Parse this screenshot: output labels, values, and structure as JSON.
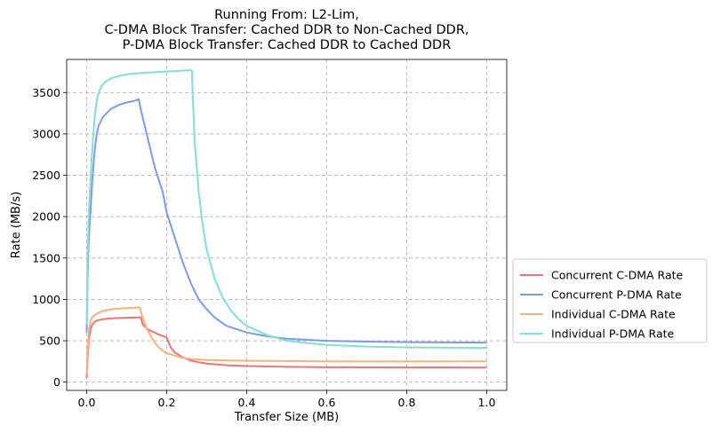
{
  "chart_data": {
    "type": "line",
    "title": "Running From: L2-Lim,\nC-DMA Block Transfer: Cached DDR to Non-Cached DDR,\nP-DMA Block Transfer: Cached DDR to Cached DDR",
    "xlabel": "Transfer Size (MB)",
    "ylabel": "Rate (MB/s)",
    "xlim": [
      -0.05,
      1.05
    ],
    "ylim": [
      -100,
      3900
    ],
    "xticks": [
      0.0,
      0.2,
      0.4,
      0.6,
      0.8,
      1.0
    ],
    "xtick_labels": [
      "0.0",
      "0.2",
      "0.4",
      "0.6",
      "0.8",
      "1.0"
    ],
    "yticks": [
      0,
      500,
      1000,
      1500,
      2000,
      2500,
      3000,
      3500
    ],
    "ytick_labels": [
      "0",
      "500",
      "1000",
      "1500",
      "2000",
      "2500",
      "3000",
      "3500"
    ],
    "grid": true,
    "legend_position": "outside-right-bottom",
    "series": [
      {
        "name": "Concurrent C-DMA Rate",
        "color": "#ea7677",
        "x": [
          0.0,
          0.002,
          0.005,
          0.01,
          0.015,
          0.02,
          0.03,
          0.04,
          0.06,
          0.08,
          0.1,
          0.12,
          0.13,
          0.135,
          0.14,
          0.15,
          0.16,
          0.17,
          0.18,
          0.19,
          0.2,
          0.21,
          0.22,
          0.24,
          0.26,
          0.28,
          0.3,
          0.35,
          0.4,
          0.5,
          0.6,
          0.8,
          1.0
        ],
        "y": [
          50,
          250,
          500,
          650,
          700,
          730,
          750,
          760,
          770,
          775,
          778,
          780,
          782,
          785,
          700,
          650,
          620,
          600,
          575,
          560,
          540,
          420,
          360,
          300,
          260,
          240,
          225,
          205,
          195,
          185,
          180,
          178,
          177
        ]
      },
      {
        "name": "Concurrent P-DMA Rate",
        "color": "#7b9ce9",
        "x": [
          0.0,
          0.002,
          0.005,
          0.01,
          0.015,
          0.02,
          0.025,
          0.03,
          0.035,
          0.04,
          0.05,
          0.06,
          0.08,
          0.1,
          0.12,
          0.13,
          0.135,
          0.14,
          0.15,
          0.16,
          0.17,
          0.18,
          0.19,
          0.2,
          0.22,
          0.24,
          0.26,
          0.28,
          0.3,
          0.32,
          0.35,
          0.4,
          0.45,
          0.5,
          0.6,
          0.7,
          0.8,
          0.9,
          1.0
        ],
        "y": [
          600,
          1200,
          1700,
          2100,
          2500,
          2800,
          3000,
          3100,
          3150,
          3200,
          3250,
          3300,
          3350,
          3380,
          3400,
          3420,
          3300,
          3200,
          3000,
          2800,
          2600,
          2450,
          2300,
          2050,
          1750,
          1450,
          1200,
          1000,
          880,
          780,
          680,
          600,
          555,
          525,
          500,
          490,
          483,
          480,
          478
        ]
      },
      {
        "name": "Individual C-DMA Rate",
        "color": "#f5b27d",
        "x": [
          0.0,
          0.002,
          0.005,
          0.01,
          0.015,
          0.02,
          0.03,
          0.04,
          0.06,
          0.08,
          0.1,
          0.12,
          0.13,
          0.133,
          0.14,
          0.15,
          0.16,
          0.17,
          0.18,
          0.19,
          0.2,
          0.22,
          0.24,
          0.26,
          0.3,
          0.4,
          0.5,
          0.6,
          0.8,
          1.0
        ],
        "y": [
          100,
          350,
          600,
          750,
          790,
          810,
          840,
          860,
          880,
          890,
          895,
          900,
          905,
          900,
          780,
          650,
          560,
          480,
          420,
          380,
          350,
          320,
          295,
          280,
          268,
          258,
          255,
          252,
          250,
          252
        ]
      },
      {
        "name": "Individual P-DMA Rate",
        "color": "#84dfcf",
        "x": [
          0.0,
          0.002,
          0.005,
          0.01,
          0.015,
          0.02,
          0.025,
          0.03,
          0.035,
          0.04,
          0.05,
          0.06,
          0.08,
          0.1,
          0.12,
          0.15,
          0.2,
          0.23,
          0.26,
          0.263,
          0.265,
          0.27,
          0.28,
          0.29,
          0.3,
          0.32,
          0.34,
          0.36,
          0.38,
          0.4,
          0.45,
          0.5,
          0.6,
          0.7,
          0.8,
          0.9,
          1.0
        ],
        "y": [
          700,
          1400,
          2000,
          2500,
          2900,
          3200,
          3400,
          3500,
          3560,
          3600,
          3640,
          3670,
          3700,
          3720,
          3730,
          3740,
          3755,
          3762,
          3770,
          3770,
          3500,
          2900,
          2300,
          1900,
          1600,
          1250,
          1020,
          870,
          760,
          680,
          570,
          500,
          450,
          430,
          420,
          417,
          415
        ]
      }
    ]
  }
}
